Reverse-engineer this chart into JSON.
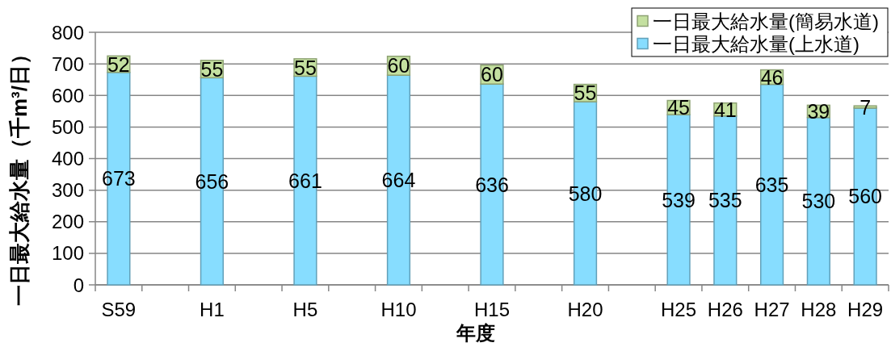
{
  "chart_data": {
    "type": "bar",
    "stacked": true,
    "categories": [
      "S59",
      null,
      "H1",
      null,
      "H5",
      null,
      "H10",
      null,
      "H15",
      null,
      "H20",
      null,
      "H25",
      "H26",
      "H27",
      "H28",
      "H29"
    ],
    "series": [
      {
        "name": "一日最大給水量(上水道)",
        "color": "#87ddff",
        "values": [
          673,
          null,
          656,
          null,
          661,
          null,
          664,
          null,
          636,
          null,
          580,
          null,
          539,
          535,
          635,
          530,
          560
        ]
      },
      {
        "name": "一日最大給水量(簡易水道)",
        "color": "#c4e0a0",
        "values": [
          52,
          null,
          55,
          null,
          55,
          null,
          60,
          null,
          60,
          null,
          55,
          null,
          45,
          41,
          46,
          39,
          7
        ]
      }
    ],
    "ylim": [
      0,
      800
    ],
    "yticks": [
      0,
      100,
      200,
      300,
      400,
      500,
      600,
      700,
      800
    ],
    "xlabel": "年度",
    "ylabel": "一日最大給水量（千m³/日）",
    "grid": "y",
    "legend": "top right",
    "data_labels": true
  }
}
